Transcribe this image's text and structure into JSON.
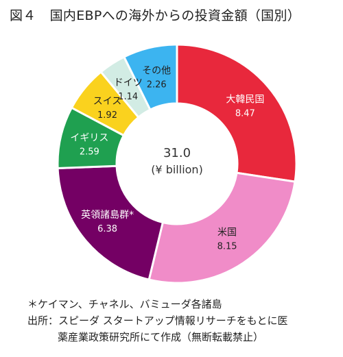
{
  "title": {
    "figure_no": "図４",
    "text": "国内EBPへの海外からの投資金額（国別）"
  },
  "chart_data": {
    "type": "pie",
    "variant": "donut",
    "center_value": "31.0",
    "center_unit": "(¥ billion)",
    "slices": [
      {
        "label": "大韓民国",
        "value": 8.47,
        "value_label": "8.47",
        "color": "#e8283c",
        "label_color": "#ffffff"
      },
      {
        "label": "米国",
        "value": 8.15,
        "value_label": "8.15",
        "color": "#f08cc8",
        "label_color": "#222222"
      },
      {
        "label": "英領諸島群*",
        "value": 6.38,
        "value_label": "6.38",
        "color": "#740064",
        "label_color": "#ffffff"
      },
      {
        "label": "イギリス",
        "value": 2.59,
        "value_label": "2.59",
        "color": "#1fa050",
        "label_color": "#ffffff"
      },
      {
        "label": "スイス",
        "value": 1.92,
        "value_label": "1.92",
        "color": "#fad21e",
        "label_color": "#222222"
      },
      {
        "label": "ドイツ",
        "value": 1.14,
        "value_label": "1.14",
        "color": "#d2ece4",
        "label_color": "#222222"
      },
      {
        "label": "その他",
        "value": 2.26,
        "value_label": "2.26",
        "color": "#3cb4f0",
        "label_color": "#222222"
      }
    ],
    "start": "12 o'clock",
    "direction": "clockwise"
  },
  "notes": {
    "footnote": "＊ケイマン、チャネル、バミューダ各諸島",
    "source_line1": "出所：スピーダ スタートアップ情報リサーチをもとに医",
    "source_line2": "薬産業政策研究所にて作成（無断転載禁止）"
  }
}
